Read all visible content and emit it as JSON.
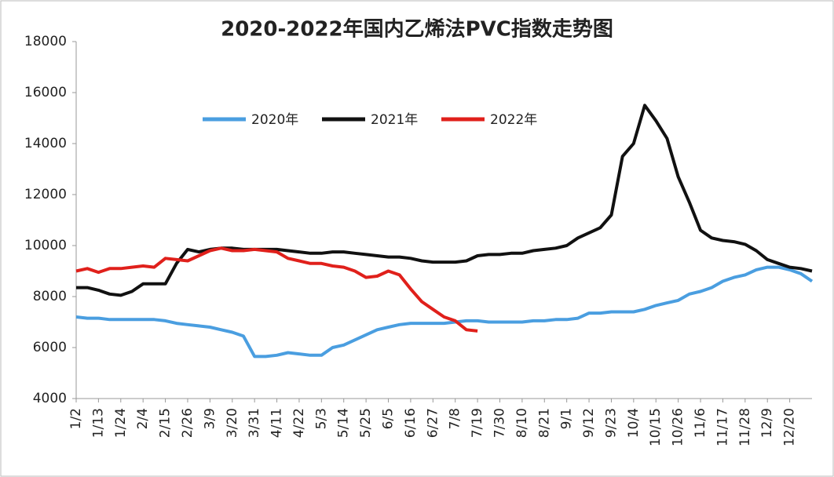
{
  "chart_data": {
    "type": "line",
    "title": "2020-2022年国内乙烯法PVC指数走势图",
    "categories": [
      "1/2",
      null,
      "1/13",
      null,
      "1/24",
      null,
      "2/4",
      null,
      "2/15",
      null,
      "2/26",
      null,
      "3/9",
      null,
      "3/20",
      null,
      "3/31",
      null,
      "4/11",
      null,
      "4/22",
      null,
      "5/3",
      null,
      "5/14",
      null,
      "5/25",
      null,
      "6/5",
      null,
      "6/16",
      null,
      "6/27",
      null,
      "7/8",
      null,
      "7/19",
      null,
      "7/30",
      null,
      "8/10",
      null,
      "8/21",
      null,
      "9/1",
      null,
      "9/12",
      null,
      "9/23",
      null,
      "10/4",
      null,
      "10/15",
      null,
      "10/26",
      null,
      "11/6",
      null,
      "11/17",
      null,
      "11/28",
      null,
      "12/9",
      null,
      "12/20",
      null,
      null
    ],
    "series": [
      {
        "name": "2020年",
        "color": "#4a9ee0",
        "values": [
          7200,
          7150,
          7150,
          7100,
          7100,
          7100,
          7100,
          7100,
          7050,
          6950,
          6900,
          6850,
          6800,
          6700,
          6600,
          6450,
          5650,
          5650,
          5700,
          5800,
          5750,
          5700,
          5700,
          6000,
          6100,
          6300,
          6500,
          6700,
          6800,
          6900,
          6950,
          6950,
          6950,
          6950,
          7000,
          7050,
          7050,
          7000,
          7000,
          7000,
          7000,
          7050,
          7050,
          7100,
          7100,
          7150,
          7350,
          7350,
          7400,
          7400,
          7400,
          7500,
          7650,
          7750,
          7850,
          8100,
          8200,
          8350,
          8600,
          8750,
          8850,
          9050,
          9150,
          9150,
          9050,
          8900,
          8600
        ]
      },
      {
        "name": "2021年",
        "color": "#111111",
        "values": [
          8350,
          8350,
          8250,
          8100,
          8050,
          8200,
          8500,
          8500,
          8500,
          9300,
          9850,
          9750,
          9850,
          9900,
          9900,
          9850,
          9850,
          9850,
          9850,
          9800,
          9750,
          9700,
          9700,
          9750,
          9750,
          9700,
          9650,
          9600,
          9550,
          9550,
          9500,
          9400,
          9350,
          9350,
          9350,
          9400,
          9600,
          9650,
          9650,
          9700,
          9700,
          9800,
          9850,
          9900,
          10000,
          10300,
          10500,
          10700,
          11200,
          13500,
          14000,
          15500,
          14900,
          14200,
          12700,
          11700,
          10600,
          10300,
          10200,
          10150,
          10050,
          9800,
          9450,
          9300,
          9150,
          9100,
          9000
        ]
      },
      {
        "name": "2022年",
        "color": "#e0201b",
        "values": [
          9000,
          9100,
          8950,
          9100,
          9100,
          9150,
          9200,
          9150,
          9500,
          9450,
          9400,
          9600,
          9800,
          9900,
          9800,
          9800,
          9850,
          9800,
          9750,
          9500,
          9400,
          9300,
          9300,
          9200,
          9150,
          9000,
          8750,
          8800,
          9000,
          8850,
          8300,
          7800,
          7500,
          7200,
          7050,
          6700,
          6650,
          null,
          null,
          null,
          null,
          null,
          null,
          null,
          null,
          null,
          null,
          null,
          null,
          null,
          null,
          null,
          null,
          null,
          null,
          null,
          null,
          null,
          null,
          null,
          null,
          null,
          null,
          null,
          null,
          null,
          null
        ]
      }
    ],
    "ylim": [
      4000,
      18000
    ],
    "yticks": [
      4000,
      6000,
      8000,
      10000,
      12000,
      14000,
      16000,
      18000
    ]
  }
}
